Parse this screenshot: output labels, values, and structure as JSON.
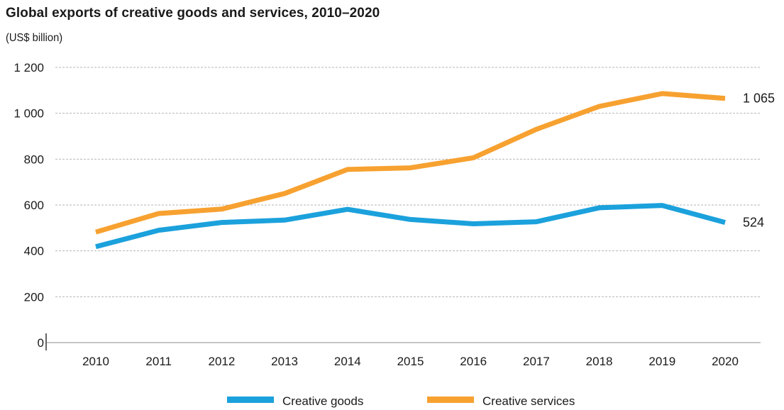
{
  "chart_data": {
    "type": "line",
    "title": "Global exports of creative goods and services, 2010–2020",
    "subtitle": "(US$ billion)",
    "x": [
      "2010",
      "2011",
      "2012",
      "2013",
      "2014",
      "2015",
      "2016",
      "2017",
      "2018",
      "2019",
      "2020"
    ],
    "ylim": [
      0,
      1200
    ],
    "yticks": [
      0,
      200,
      400,
      600,
      800,
      1000,
      1200
    ],
    "ytick_labels": [
      "0",
      "200",
      "400",
      "600",
      "800",
      "1 000",
      "1 200"
    ],
    "grid": true,
    "legend": "bottom",
    "series": [
      {
        "name": "Creative goods",
        "color": "#1ba1dc",
        "values": [
          418,
          490,
          524,
          534,
          581,
          537,
          518,
          527,
          588,
          598,
          524
        ],
        "end_label": "524"
      },
      {
        "name": "Creative services",
        "color": "#f7a130",
        "values": [
          482,
          563,
          582,
          650,
          755,
          762,
          806,
          930,
          1030,
          1086,
          1065
        ],
        "end_label": "1 065"
      }
    ]
  }
}
